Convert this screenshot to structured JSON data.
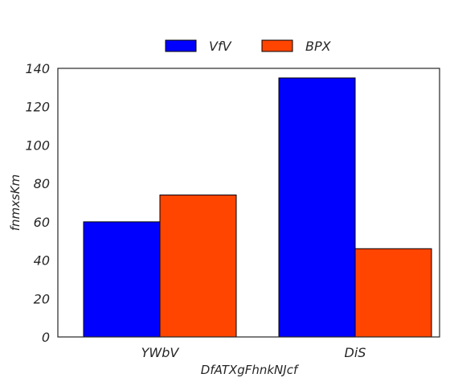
{
  "chart_data": {
    "type": "bar",
    "categories": [
      "YWbV",
      "DiS"
    ],
    "series": [
      {
        "name": "VfV",
        "values": [
          60,
          135
        ],
        "color": "#0000ff"
      },
      {
        "name": "BPX",
        "values": [
          74,
          46
        ],
        "color": "#ff4500"
      }
    ],
    "xlabel": "DfATXgFhnkNJcf",
    "ylabel": "fnmxsKm",
    "ylim": [
      0,
      140
    ],
    "yticks": [
      0,
      20,
      40,
      60,
      80,
      100,
      120,
      140
    ],
    "grid": false,
    "legend_position": "top-center"
  }
}
